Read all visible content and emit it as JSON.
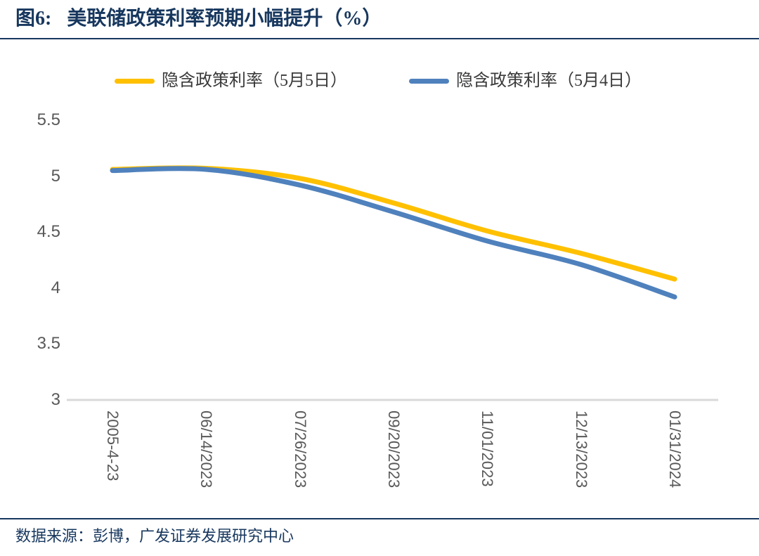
{
  "header": {
    "figure_label": "图6:",
    "title": "美联储政策利率预期小幅提升（%）"
  },
  "chart_data": {
    "type": "line",
    "categories": [
      "2005-4-23",
      "06/14/2023",
      "07/26/2023",
      "09/20/2023",
      "11/01/2023",
      "12/13/2023",
      "01/31/2024"
    ],
    "series": [
      {
        "name": "隐含政策利率（5月5日）",
        "color": "#FFC000",
        "values": [
          5.06,
          5.07,
          4.98,
          4.76,
          4.51,
          4.31,
          4.08
        ]
      },
      {
        "name": "隐含政策利率（5月4日）",
        "color": "#4F81BD",
        "values": [
          5.05,
          5.06,
          4.92,
          4.68,
          4.42,
          4.21,
          3.92
        ]
      }
    ],
    "title": "美联储政策利率预期小幅提升（%）",
    "xlabel": "",
    "ylabel": "",
    "ylim": [
      3,
      5.5
    ],
    "yticks": [
      3,
      3.5,
      4,
      4.5,
      5,
      5.5
    ],
    "grid": false,
    "legend_position": "top",
    "line_style": "smooth"
  },
  "footer": {
    "source": "数据来源：彭博，广发证券发展研究中心"
  },
  "colors": {
    "title_text": "#17375E",
    "rule": "#17375E",
    "axis_label": "#595959",
    "axis_line": "#D9D9D9",
    "legend_text": "#3A3A3A",
    "series_yellow": "#FFC000",
    "series_blue": "#4F81BD"
  }
}
